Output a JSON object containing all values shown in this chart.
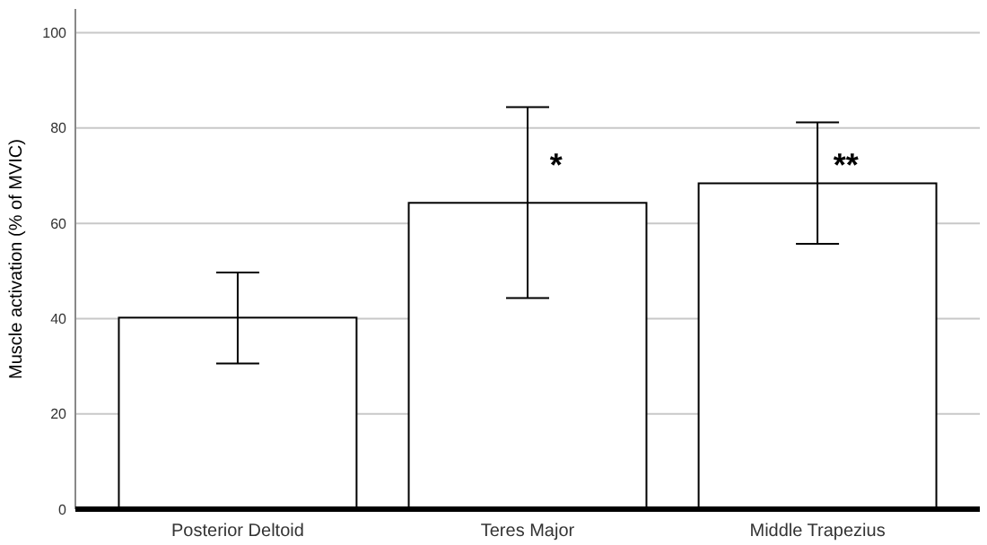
{
  "chart_data": {
    "type": "bar",
    "ylabel": "Muscle activation (% of MVIC)",
    "categories": [
      "Posterior Deltoid",
      "Teres Major",
      "Middle Trapezius"
    ],
    "series": [
      {
        "color": "#ffffff",
        "values": [
          40.2,
          64.3,
          68.4
        ],
        "errors": [
          [
            30.6,
            49.7
          ],
          [
            44.3,
            84.4
          ],
          [
            55.7,
            81.2
          ]
        ]
      }
    ],
    "ylim": [
      0,
      105
    ],
    "yticks": [
      0,
      20,
      40,
      60,
      80,
      100
    ],
    "grid": "y",
    "annotations": [
      {
        "text": "*",
        "x": "Teres Major",
        "y": 74
      },
      {
        "text": "**",
        "x": "Middle Trapezius",
        "y": 74
      }
    ]
  }
}
